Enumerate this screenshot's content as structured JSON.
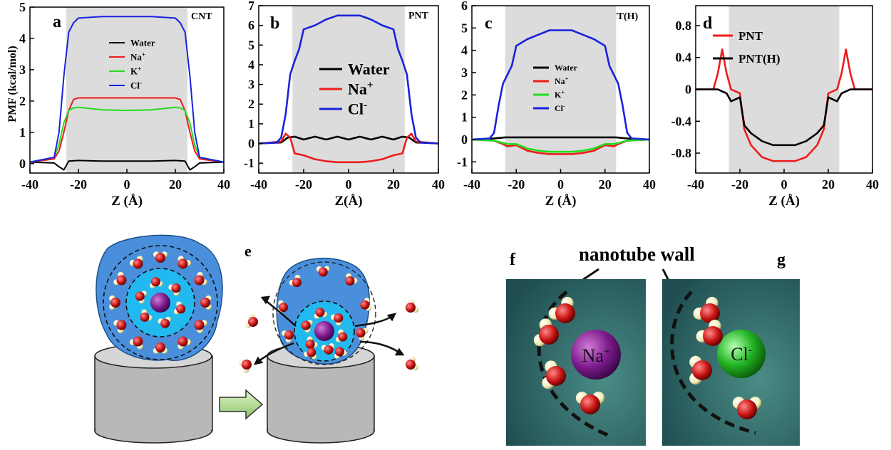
{
  "panels": {
    "a": {
      "letter": "a",
      "tag": "CNT"
    },
    "b": {
      "letter": "b",
      "tag": "PNT"
    },
    "c": {
      "letter": "c",
      "tag": "PNT(H)"
    },
    "d": {
      "letter": "d",
      "tag": ""
    },
    "e": {
      "letter": "e"
    },
    "f": {
      "letter": "f",
      "ion": "Na",
      "charge": "+"
    },
    "g": {
      "letter": "g",
      "ion": "Cl",
      "charge": "-"
    }
  },
  "labels": {
    "ylabel": "PMF (kcal/mol)",
    "xlabel": "Z (Å)",
    "xlabel_b": "Z(Å)",
    "wall": "nanotube wall"
  },
  "colors": {
    "water": "#000000",
    "na": "#ee1c1c",
    "k": "#22dd22",
    "cl": "#1a22dd",
    "shade": "#dcdcdc",
    "tube": "#bdbdbd",
    "hydration": "#4a8fdb",
    "inner": "#21b9f0",
    "na_ion": "#7a1a8a",
    "cl_ion": "#23b423",
    "oxygen": "#c81414",
    "hydrogen": "#f4f1c5",
    "panel_bg": "#2f6a6a"
  },
  "chart_data": [
    {
      "panel": "a",
      "type": "line",
      "xlim": [
        -40,
        40
      ],
      "ylim": [
        -0.3,
        5
      ],
      "xticks": [
        "-40",
        "-20",
        "0",
        "20",
        "40"
      ],
      "yticks": [
        "0",
        "1",
        "2",
        "3",
        "4",
        "5"
      ],
      "shade": [
        -25,
        25
      ],
      "xlabel": "Z (Å)",
      "ylabel": "PMF (kcal/mol)",
      "legend_pos": "upper-center",
      "series": [
        {
          "name": "Water",
          "sup": "",
          "color": "#000000",
          "x": [
            -40,
            -30,
            -28,
            -26,
            -24,
            -20,
            -10,
            0,
            10,
            20,
            24,
            26,
            28,
            30,
            40
          ],
          "y": [
            0.05,
            0.02,
            -0.1,
            -0.2,
            0.08,
            0.1,
            0.08,
            0.08,
            0.08,
            0.1,
            0.08,
            -0.2,
            -0.1,
            0.02,
            0.05
          ]
        },
        {
          "name": "Na",
          "sup": "+",
          "color": "#ee1c1c",
          "x": [
            -40,
            -30,
            -28,
            -26,
            -24,
            -22,
            -20,
            -10,
            0,
            10,
            20,
            22,
            24,
            26,
            28,
            30,
            40
          ],
          "y": [
            0.05,
            0.15,
            0.4,
            1.0,
            1.7,
            2.05,
            2.1,
            2.1,
            2.1,
            2.1,
            2.1,
            2.05,
            1.7,
            1.0,
            0.4,
            0.15,
            0.05
          ]
        },
        {
          "name": "K",
          "sup": "+",
          "color": "#22dd22",
          "x": [
            -40,
            -30,
            -28,
            -26,
            -24,
            -22,
            -20,
            -10,
            0,
            10,
            20,
            22,
            24,
            26,
            28,
            30,
            40
          ],
          "y": [
            0.05,
            0.2,
            0.6,
            1.3,
            1.7,
            1.78,
            1.8,
            1.72,
            1.7,
            1.72,
            1.8,
            1.78,
            1.7,
            1.3,
            0.6,
            0.2,
            0.05
          ]
        },
        {
          "name": "Cl",
          "sup": "-",
          "color": "#1a22dd",
          "x": [
            -40,
            -30,
            -28,
            -26,
            -24,
            -22,
            -20,
            -10,
            0,
            10,
            20,
            22,
            24,
            26,
            28,
            30,
            40
          ],
          "y": [
            0.05,
            0.2,
            1.0,
            2.8,
            4.2,
            4.5,
            4.65,
            4.7,
            4.7,
            4.7,
            4.65,
            4.5,
            4.2,
            2.8,
            1.0,
            0.2,
            0.05
          ]
        }
      ]
    },
    {
      "panel": "b",
      "type": "line",
      "xlim": [
        -40,
        40
      ],
      "ylim": [
        -1.5,
        7
      ],
      "xticks": [
        "-40",
        "-20",
        "0",
        "20",
        "40"
      ],
      "yticks": [
        "-1",
        "0",
        "1",
        "2",
        "3",
        "4",
        "5",
        "6",
        "7"
      ],
      "shade": [
        -25,
        25
      ],
      "xlabel": "Z(Å)",
      "legend_pos": "center",
      "series": [
        {
          "name": "Water",
          "sup": "",
          "color": "#000000",
          "x": [
            -40,
            -30,
            -27,
            -24,
            -20,
            -15,
            -10,
            -5,
            0,
            5,
            10,
            15,
            20,
            24,
            27,
            30,
            40
          ],
          "y": [
            0,
            0.05,
            0.3,
            0.35,
            0.2,
            0.35,
            0.2,
            0.35,
            0.2,
            0.35,
            0.2,
            0.35,
            0.2,
            0.35,
            0.3,
            0.05,
            0
          ]
        },
        {
          "name": "Na",
          "sup": "+",
          "color": "#ee1c1c",
          "x": [
            -40,
            -30,
            -28,
            -26,
            -24,
            -20,
            -15,
            -10,
            -5,
            0,
            5,
            10,
            15,
            20,
            24,
            26,
            28,
            30,
            40
          ],
          "y": [
            0,
            0.1,
            0.5,
            0.3,
            -0.5,
            -0.6,
            -0.8,
            -0.9,
            -0.95,
            -0.95,
            -0.95,
            -0.9,
            -0.8,
            -0.6,
            -0.5,
            0.3,
            0.5,
            0.1,
            0
          ]
        },
        {
          "name": "Cl",
          "sup": "-",
          "color": "#1a22dd",
          "x": [
            -40,
            -32,
            -30,
            -28,
            -26,
            -24,
            -22,
            -20,
            -15,
            -10,
            -5,
            0,
            5,
            10,
            15,
            20,
            22,
            24,
            26,
            28,
            30,
            32,
            40
          ],
          "y": [
            0,
            0.05,
            0.3,
            1.5,
            3.5,
            4.2,
            4.8,
            5.8,
            6.0,
            6.3,
            6.5,
            6.5,
            6.5,
            6.3,
            6.0,
            5.8,
            4.8,
            4.2,
            3.5,
            1.5,
            0.3,
            0.05,
            0
          ]
        }
      ]
    },
    {
      "panel": "c",
      "type": "line",
      "xlim": [
        -40,
        40
      ],
      "ylim": [
        -1.5,
        6
      ],
      "xticks": [
        "-40",
        "-20",
        "0",
        "20",
        "40"
      ],
      "yticks": [
        "-1",
        "0",
        "1",
        "2",
        "3",
        "4",
        "5",
        "6"
      ],
      "shade": [
        -25,
        25
      ],
      "xlabel": "Z (Å)",
      "legend_pos": "upper-center",
      "series": [
        {
          "name": "Water",
          "sup": "",
          "color": "#000000",
          "x": [
            -40,
            -30,
            -25,
            -20,
            -10,
            0,
            10,
            20,
            25,
            30,
            40
          ],
          "y": [
            0,
            0.05,
            0.1,
            0.1,
            0.1,
            0.1,
            0.1,
            0.1,
            0.1,
            0.05,
            0
          ]
        },
        {
          "name": "Na",
          "sup": "+",
          "color": "#ee1c1c",
          "x": [
            -40,
            -30,
            -26,
            -24,
            -20,
            -15,
            -10,
            -5,
            0,
            5,
            10,
            15,
            20,
            24,
            26,
            30,
            40
          ],
          "y": [
            0,
            -0.05,
            -0.2,
            -0.3,
            -0.25,
            -0.5,
            -0.6,
            -0.65,
            -0.65,
            -0.65,
            -0.6,
            -0.5,
            -0.25,
            -0.3,
            -0.2,
            -0.05,
            0
          ]
        },
        {
          "name": "K",
          "sup": "+",
          "color": "#22dd22",
          "x": [
            -40,
            -30,
            -26,
            -24,
            -20,
            -15,
            -10,
            -5,
            0,
            5,
            10,
            15,
            20,
            24,
            26,
            30,
            40
          ],
          "y": [
            0,
            -0.05,
            -0.15,
            -0.2,
            -0.2,
            -0.4,
            -0.5,
            -0.55,
            -0.55,
            -0.55,
            -0.5,
            -0.4,
            -0.2,
            -0.2,
            -0.15,
            -0.05,
            0
          ]
        },
        {
          "name": "Cl",
          "sup": "-",
          "color": "#1a22dd",
          "x": [
            -40,
            -32,
            -30,
            -28,
            -26,
            -24,
            -22,
            -20,
            -15,
            -10,
            -5,
            0,
            5,
            10,
            15,
            20,
            22,
            24,
            26,
            28,
            30,
            32,
            40
          ],
          "y": [
            0,
            0.05,
            0.3,
            1.5,
            2.5,
            2.9,
            3.3,
            4.2,
            4.5,
            4.7,
            4.9,
            4.9,
            4.9,
            4.7,
            4.5,
            4.2,
            3.3,
            2.9,
            2.5,
            1.5,
            0.3,
            0.05,
            0
          ]
        }
      ]
    },
    {
      "panel": "d",
      "type": "line",
      "xlim": [
        -40,
        40
      ],
      "ylim": [
        -1.05,
        1.05
      ],
      "xticks": [
        "-40",
        "-20",
        "0",
        "20",
        "40"
      ],
      "yticks": [
        "-0.8",
        "-0.4",
        "0",
        "0.4",
        "0.8"
      ],
      "shade": [
        -25,
        25
      ],
      "xlabel": "Z (Å)",
      "legend_pos": "upper-left",
      "series": [
        {
          "name": "PNT",
          "sup": "",
          "color": "#ee1c1c",
          "x": [
            -40,
            -32,
            -30,
            -28,
            -26,
            -24,
            -20,
            -18,
            -15,
            -10,
            -5,
            0,
            5,
            10,
            15,
            18,
            20,
            24,
            26,
            28,
            30,
            32,
            40
          ],
          "y": [
            0,
            0,
            0.2,
            0.5,
            0.2,
            0,
            -0.05,
            -0.5,
            -0.7,
            -0.85,
            -0.9,
            -0.9,
            -0.9,
            -0.85,
            -0.7,
            -0.5,
            -0.05,
            0,
            0.2,
            0.5,
            0.2,
            0,
            0
          ]
        },
        {
          "name": "PNT(H)",
          "sup": "",
          "color": "#000000",
          "x": [
            -40,
            -30,
            -26,
            -24,
            -20,
            -18,
            -15,
            -10,
            -5,
            0,
            5,
            10,
            15,
            18,
            20,
            24,
            26,
            30,
            40
          ],
          "y": [
            0,
            0,
            -0.05,
            -0.15,
            -0.1,
            -0.45,
            -0.55,
            -0.65,
            -0.7,
            -0.7,
            -0.7,
            -0.65,
            -0.55,
            -0.45,
            -0.1,
            -0.15,
            -0.05,
            0,
            0
          ]
        }
      ]
    }
  ]
}
